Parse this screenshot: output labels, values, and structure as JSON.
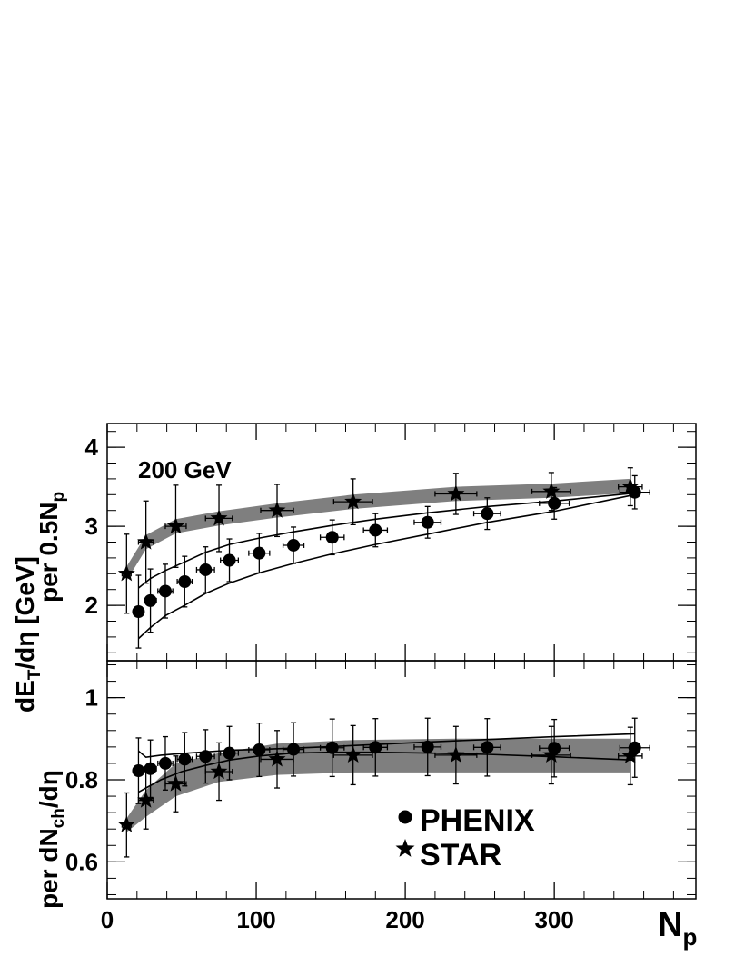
{
  "chart_data": [
    {
      "type": "scatter",
      "panel": "top",
      "annotation": "200 GeV",
      "ylabel_main": "dE",
      "ylabel_sub": "T",
      "ylabel_rest": "/dη [GeV]",
      "ylabel_per": "per 0.5N",
      "ylabel_per_sub": "p",
      "xlim": [
        0,
        395
      ],
      "ylim": [
        1.3,
        4.3
      ],
      "xticks": [
        0,
        100,
        200,
        300
      ],
      "yticks": [
        2,
        3,
        4
      ],
      "ytick_labels": [
        "2",
        "3",
        "4"
      ],
      "series": [
        {
          "name": "PHENIX",
          "marker": "circle",
          "x": [
            21,
            29,
            39,
            52,
            66,
            82,
            102,
            125,
            151,
            180,
            215,
            255,
            300,
            354
          ],
          "y": [
            1.92,
            2.06,
            2.18,
            2.3,
            2.45,
            2.57,
            2.66,
            2.76,
            2.86,
            2.95,
            3.05,
            3.16,
            3.29,
            3.43
          ],
          "yerr": [
            0.46,
            0.4,
            0.34,
            0.32,
            0.29,
            0.27,
            0.25,
            0.23,
            0.22,
            0.21,
            0.2,
            0.2,
            0.2,
            0.21
          ],
          "xerr": [
            3,
            4,
            5,
            5,
            6,
            6,
            7,
            7,
            8,
            8,
            9,
            9,
            10,
            10
          ]
        },
        {
          "name": "STAR",
          "marker": "star",
          "x": [
            13,
            26,
            46,
            75,
            114,
            165,
            234,
            298,
            351
          ],
          "y": [
            2.4,
            2.8,
            3.0,
            3.1,
            3.2,
            3.31,
            3.41,
            3.44,
            3.5
          ],
          "yerr": [
            0.5,
            0.52,
            0.52,
            0.42,
            0.33,
            0.29,
            0.26,
            0.24,
            0.24
          ],
          "xerr": [
            3,
            5,
            7,
            9,
            11,
            13,
            14,
            13,
            8
          ]
        }
      ],
      "bands": [
        {
          "x": [
            13,
            26,
            46,
            75,
            114,
            165,
            234,
            298,
            351
          ],
          "lo": [
            2.31,
            2.71,
            2.91,
            3.01,
            3.11,
            3.22,
            3.32,
            3.36,
            3.42
          ],
          "hi": [
            2.49,
            2.89,
            3.09,
            3.19,
            3.29,
            3.4,
            3.5,
            3.54,
            3.6
          ]
        }
      ],
      "lines": [
        {
          "x": [
            21,
            29,
            39,
            52,
            66,
            82,
            102,
            125,
            151,
            180,
            215,
            255,
            300,
            354
          ],
          "y": [
            2.22,
            2.34,
            2.44,
            2.55,
            2.67,
            2.77,
            2.85,
            2.93,
            3.01,
            3.09,
            3.17,
            3.25,
            3.32,
            3.42
          ]
        },
        {
          "x": [
            21,
            29,
            39,
            52,
            66,
            82,
            102,
            125,
            151,
            180,
            215,
            255,
            300,
            354
          ],
          "y": [
            1.58,
            1.72,
            1.87,
            2.0,
            2.15,
            2.28,
            2.41,
            2.53,
            2.65,
            2.77,
            2.9,
            3.05,
            3.19,
            3.4
          ]
        }
      ]
    },
    {
      "type": "scatter",
      "panel": "bottom",
      "xlabel_main": "N",
      "xlabel_sub": "p",
      "ylabel_main": "per dN",
      "ylabel_sub": "ch",
      "ylabel_rest": "/dη",
      "xlim": [
        0,
        395
      ],
      "ylim": [
        0.51,
        1.09
      ],
      "xticks": [
        0,
        100,
        200,
        300
      ],
      "xtick_labels": [
        "0",
        "100",
        "200",
        "300"
      ],
      "yticks": [
        0.6,
        0.8,
        1.0
      ],
      "ytick_labels": [
        "0.6",
        "0.8",
        "1"
      ],
      "legend": [
        "PHENIX",
        "STAR"
      ],
      "series": [
        {
          "name": "PHENIX",
          "marker": "circle",
          "x": [
            21,
            29,
            39,
            52,
            66,
            82,
            102,
            125,
            151,
            180,
            215,
            255,
            300,
            354
          ],
          "y": [
            0.822,
            0.827,
            0.84,
            0.85,
            0.857,
            0.865,
            0.873,
            0.874,
            0.878,
            0.879,
            0.88,
            0.879,
            0.877,
            0.878
          ],
          "yerr": [
            0.08,
            0.07,
            0.065,
            0.065,
            0.065,
            0.065,
            0.065,
            0.065,
            0.07,
            0.07,
            0.07,
            0.07,
            0.07,
            0.072
          ],
          "xerr": [
            3,
            4,
            5,
            5,
            6,
            6,
            7,
            7,
            8,
            8,
            9,
            9,
            10,
            10
          ]
        },
        {
          "name": "STAR",
          "marker": "star",
          "x": [
            13,
            26,
            46,
            75,
            114,
            165,
            234,
            298,
            351
          ],
          "y": [
            0.69,
            0.75,
            0.79,
            0.82,
            0.85,
            0.86,
            0.86,
            0.86,
            0.858
          ],
          "yerr": [
            0.078,
            0.07,
            0.068,
            0.07,
            0.07,
            0.072,
            0.07,
            0.07,
            0.07
          ],
          "xerr": [
            3,
            5,
            7,
            9,
            11,
            13,
            14,
            13,
            8
          ]
        }
      ],
      "bands": [
        {
          "x": [
            13,
            26,
            46,
            75,
            114,
            165,
            234,
            298,
            351
          ],
          "lo": [
            0.672,
            0.71,
            0.76,
            0.795,
            0.812,
            0.818,
            0.818,
            0.818,
            0.818
          ],
          "hi": [
            0.706,
            0.775,
            0.84,
            0.865,
            0.888,
            0.897,
            0.9,
            0.9,
            0.9
          ]
        }
      ],
      "lines": [
        {
          "x": [
            21,
            26,
            36,
            50,
            66,
            82,
            102,
            125,
            151,
            180,
            215,
            255,
            300,
            354
          ],
          "y": [
            0.77,
            0.78,
            0.8,
            0.82,
            0.835,
            0.848,
            0.858,
            0.865,
            0.867,
            0.867,
            0.865,
            0.862,
            0.856,
            0.848
          ]
        },
        {
          "x": [
            21,
            26,
            36,
            50,
            66,
            82,
            102,
            125,
            151,
            180,
            215,
            255,
            300,
            354
          ],
          "y": [
            0.87,
            0.855,
            0.86,
            0.864,
            0.868,
            0.872,
            0.874,
            0.877,
            0.881,
            0.886,
            0.892,
            0.898,
            0.905,
            0.912
          ]
        }
      ]
    }
  ]
}
